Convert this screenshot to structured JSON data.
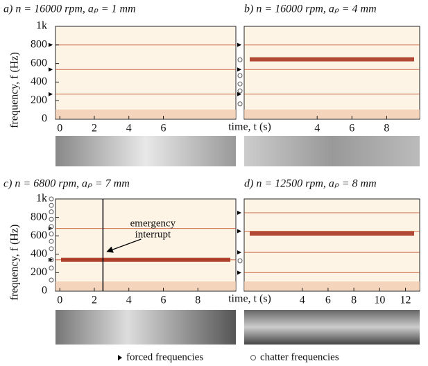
{
  "chart_data": [
    {
      "type": "spectrogram",
      "title": "a) n = 16000 rpm, aₚ = 1 mm",
      "ylabel": "frequency, f (Hz)",
      "xlabel": "time, t (s)",
      "xlim": [
        -0.25,
        10.2
      ],
      "ylim": [
        0,
        1000
      ],
      "xticks": [
        0,
        2,
        4,
        6
      ],
      "yticks": [
        0,
        200,
        400,
        600,
        800,
        {
          "value": 1000,
          "label": "1k"
        }
      ],
      "forced": [
        270,
        535,
        800
      ],
      "chatter": []
    },
    {
      "type": "spectrogram",
      "title": "b) n = 16000 rpm, aₚ = 4 mm",
      "xlim": [
        -0.2,
        9.9
      ],
      "ylim": [
        0,
        1000
      ],
      "xticks": [
        4,
        6,
        8
      ],
      "forced": [
        270,
        535,
        800
      ],
      "chatter": [
        165,
        305,
        380,
        470,
        640
      ],
      "dominant": 645
    },
    {
      "type": "spectrogram",
      "title": "c) n = 6800 rpm, aₚ = 7 mm",
      "ylabel": "frequency, f (Hz)",
      "xlabel": "time, t (s)",
      "xlim": [
        -0.25,
        10.2
      ],
      "ylim": [
        0,
        1000
      ],
      "xticks": [
        0,
        2,
        4,
        6,
        8
      ],
      "yticks": [
        0,
        200,
        400,
        600,
        800,
        {
          "value": 1000,
          "label": "1k"
        }
      ],
      "forced": [
        340,
        680
      ],
      "chatter": [
        120,
        250,
        340,
        460,
        540,
        620,
        700,
        780,
        860,
        930,
        1000
      ],
      "dominant": 340,
      "annotation": {
        "lines": [
          "emergency",
          "interrupt"
        ],
        "time": 2.5
      }
    },
    {
      "type": "spectrogram",
      "title": "d) n = 12500 rpm, aₚ = 8 mm",
      "xlim": [
        -0.5,
        13.1
      ],
      "ylim": [
        0,
        1000
      ],
      "xticks": [
        4,
        6,
        8,
        10,
        12
      ],
      "forced": [
        200,
        420,
        650,
        850
      ],
      "chatter": [
        330
      ],
      "dominant": 625
    }
  ],
  "legend": {
    "forced": "forced frequencies",
    "chatter": "chatter frequencies"
  }
}
